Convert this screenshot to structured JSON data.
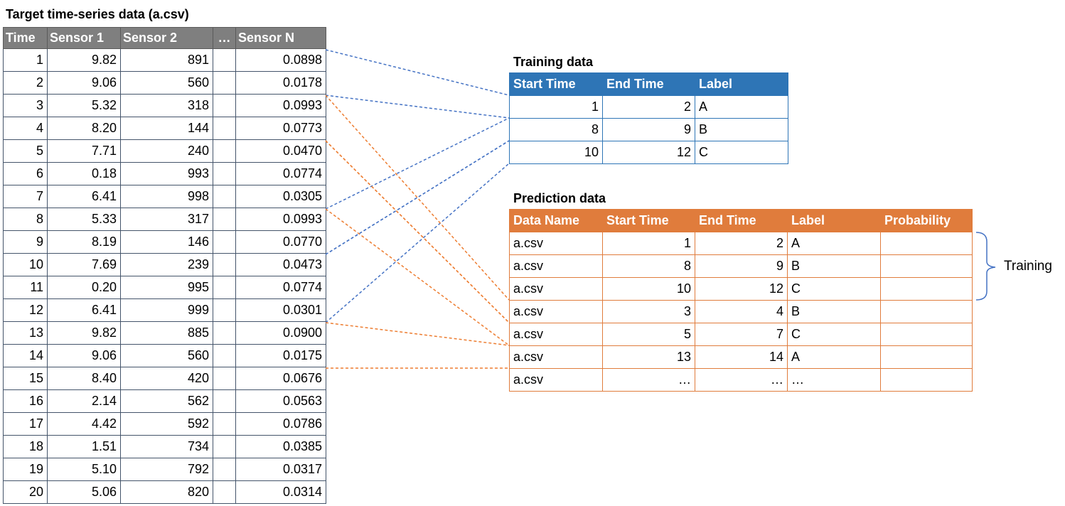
{
  "target": {
    "title": "Target time-series data (a.csv)",
    "headers": [
      "Time",
      "Sensor 1",
      "Sensor 2",
      "…",
      "Sensor N"
    ],
    "rows": [
      [
        "1",
        "9.82",
        "891",
        "",
        "0.0898"
      ],
      [
        "2",
        "9.06",
        "560",
        "",
        "0.0178"
      ],
      [
        "3",
        "5.32",
        "318",
        "",
        "0.0993"
      ],
      [
        "4",
        "8.20",
        "144",
        "",
        "0.0773"
      ],
      [
        "5",
        "7.71",
        "240",
        "",
        "0.0470"
      ],
      [
        "6",
        "0.18",
        "993",
        "",
        "0.0774"
      ],
      [
        "7",
        "6.41",
        "998",
        "",
        "0.0305"
      ],
      [
        "8",
        "5.33",
        "317",
        "",
        "0.0993"
      ],
      [
        "9",
        "8.19",
        "146",
        "",
        "0.0770"
      ],
      [
        "10",
        "7.69",
        "239",
        "",
        "0.0473"
      ],
      [
        "11",
        "0.20",
        "995",
        "",
        "0.0774"
      ],
      [
        "12",
        "6.41",
        "999",
        "",
        "0.0301"
      ],
      [
        "13",
        "9.82",
        "885",
        "",
        "0.0900"
      ],
      [
        "14",
        "9.06",
        "560",
        "",
        "0.0175"
      ],
      [
        "15",
        "8.40",
        "420",
        "",
        "0.0676"
      ],
      [
        "16",
        "2.14",
        "562",
        "",
        "0.0563"
      ],
      [
        "17",
        "4.42",
        "592",
        "",
        "0.0786"
      ],
      [
        "18",
        "1.51",
        "734",
        "",
        "0.0385"
      ],
      [
        "19",
        "5.10",
        "792",
        "",
        "0.0317"
      ],
      [
        "20",
        "5.06",
        "820",
        "",
        "0.0314"
      ]
    ]
  },
  "training": {
    "title": "Training data",
    "headers": [
      "Start Time",
      "End Time",
      "Label"
    ],
    "rows": [
      [
        "1",
        "2",
        "A"
      ],
      [
        "8",
        "9",
        "B"
      ],
      [
        "10",
        "12",
        "C"
      ]
    ]
  },
  "prediction": {
    "title": "Prediction data",
    "headers": [
      "Data Name",
      "Start Time",
      "End Time",
      "Label",
      "Probability"
    ],
    "rows": [
      [
        "a.csv",
        "1",
        "2",
        "A",
        ""
      ],
      [
        "a.csv",
        "8",
        "9",
        "B",
        ""
      ],
      [
        "a.csv",
        "10",
        "12",
        "C",
        ""
      ],
      [
        "a.csv",
        "3",
        "4",
        "B",
        ""
      ],
      [
        "a.csv",
        "5",
        "7",
        "C",
        ""
      ],
      [
        "a.csv",
        "13",
        "14",
        "A",
        ""
      ],
      [
        "a.csv",
        "…",
        "…",
        "…",
        ""
      ]
    ]
  },
  "brace": {
    "label": "Training"
  },
  "colors": {
    "target_header": "#7f7f7f",
    "training": "#2e75b6",
    "prediction": "#e07c3c",
    "blue_link": "#4472c4",
    "orange_link": "#ed7d31"
  }
}
